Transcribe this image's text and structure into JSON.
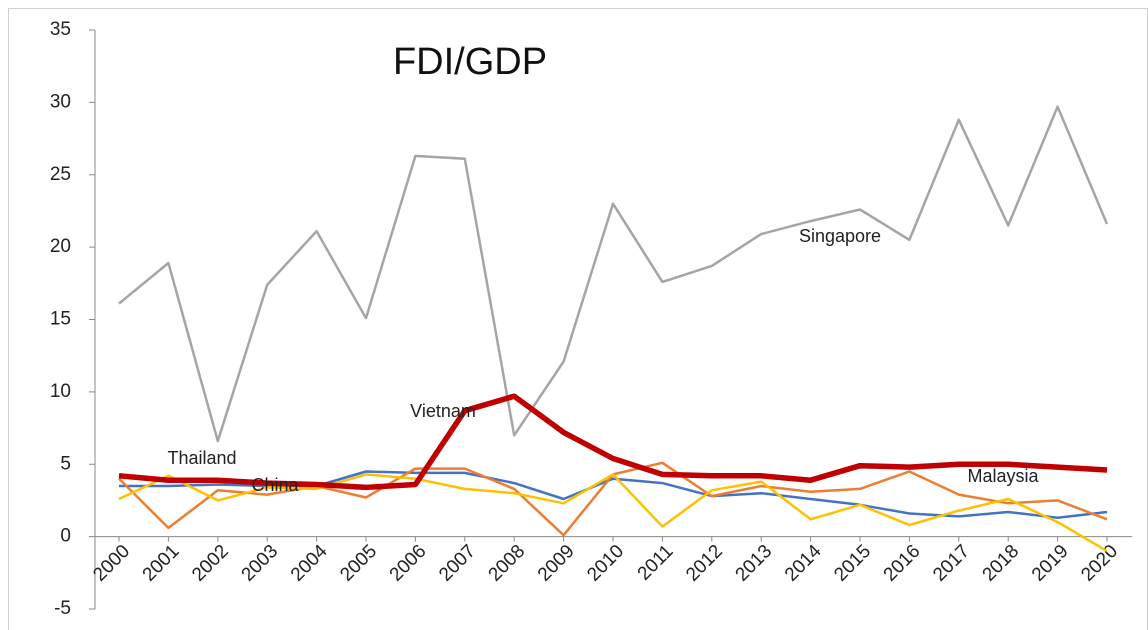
{
  "chart_data": {
    "type": "line",
    "title": "FDI/GDP",
    "x": [
      2000,
      2001,
      2002,
      2003,
      2004,
      2005,
      2006,
      2007,
      2008,
      2009,
      2010,
      2011,
      2012,
      2013,
      2014,
      2015,
      2016,
      2017,
      2018,
      2019,
      2020
    ],
    "xlim": [
      2000,
      2020
    ],
    "xticks": [
      2000,
      2001,
      2002,
      2003,
      2004,
      2005,
      2006,
      2007,
      2008,
      2009,
      2010,
      2011,
      2012,
      2013,
      2014,
      2015,
      2016,
      2017,
      2018,
      2019,
      2020
    ],
    "ylim": [
      -5,
      35
    ],
    "yticks": [
      -5,
      0,
      5,
      10,
      15,
      20,
      25,
      30,
      35
    ],
    "grid": false,
    "series": [
      {
        "name": "China",
        "color": "#4472c4",
        "values": [
          3.5,
          3.5,
          3.6,
          3.5,
          3.5,
          4.5,
          4.4,
          4.4,
          3.7,
          2.6,
          4.0,
          3.7,
          2.8,
          3.0,
          2.6,
          2.2,
          1.6,
          1.4,
          1.7,
          1.3,
          1.7
        ]
      },
      {
        "name": "Malaysia",
        "color": "#ed7d31",
        "values": [
          4.0,
          0.6,
          3.2,
          2.9,
          3.5,
          2.7,
          4.7,
          4.7,
          3.3,
          0.1,
          4.3,
          5.1,
          2.8,
          3.5,
          3.1,
          3.3,
          4.5,
          2.9,
          2.3,
          2.5,
          1.2
        ]
      },
      {
        "name": "Singapore",
        "color": "#a5a5a5",
        "values": [
          16.1,
          18.9,
          6.6,
          17.4,
          21.1,
          15.1,
          26.3,
          26.1,
          7.0,
          12.1,
          23.0,
          17.6,
          18.7,
          20.9,
          21.8,
          22.6,
          20.5,
          28.8,
          21.5,
          29.7,
          21.6
        ]
      },
      {
        "name": "Thailand",
        "color": "#ffc000",
        "values": [
          2.6,
          4.2,
          2.5,
          3.4,
          3.3,
          4.3,
          4.0,
          3.3,
          3.0,
          2.3,
          4.3,
          0.7,
          3.2,
          3.8,
          1.2,
          2.2,
          0.8,
          1.8,
          2.6,
          1.0,
          -1.0
        ]
      },
      {
        "name": "Vietnam",
        "color": "#c00000",
        "values": [
          4.2,
          3.9,
          3.9,
          3.7,
          3.6,
          3.4,
          3.6,
          8.7,
          9.7,
          7.2,
          5.4,
          4.3,
          4.2,
          4.2,
          3.9,
          4.9,
          4.8,
          5.0,
          5.0,
          4.8,
          4.6
        ]
      }
    ]
  }
}
